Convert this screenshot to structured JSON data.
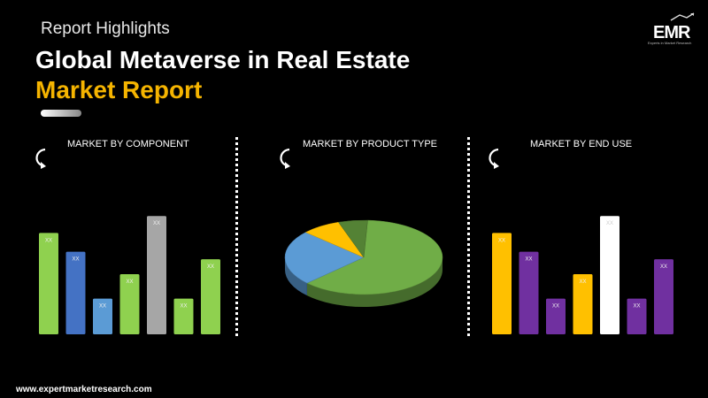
{
  "header": {
    "kicker": "Report Highlights",
    "title_line1": "Global Metaverse in Real Estate",
    "title_line2": "Market Report"
  },
  "logo": {
    "text": "EMR",
    "tagline": "Experts in Market Research"
  },
  "footer": {
    "url": "www.expertmarketresearch.com"
  },
  "chart_data": [
    {
      "type": "bar",
      "title": "MARKET BY COMPONENT",
      "categories": [
        "",
        "",
        "",
        "",
        "",
        "",
        ""
      ],
      "values": [
        108,
        88,
        38,
        64,
        126,
        38,
        80
      ],
      "data_labels": [
        "XX",
        "XX",
        "XX",
        "XX",
        "XX",
        "XX",
        "XX"
      ],
      "colors": [
        "#8fd14f",
        "#4472c4",
        "#5b9bd5",
        "#8fd14f",
        "#a6a6a6",
        "#8fd14f",
        "#8fd14f"
      ],
      "ylim": [
        0,
        130
      ],
      "grid": false
    },
    {
      "type": "pie",
      "title": "MARKET BY PRODUCT TYPE",
      "values": [
        62,
        24,
        8,
        6
      ],
      "colors": [
        "#70ad47",
        "#5b9bd5",
        "#ffc000",
        "#548235"
      ],
      "labels": [
        "",
        "",
        "",
        ""
      ]
    },
    {
      "type": "bar",
      "title": "MARKET BY END USE",
      "categories": [
        "",
        "",
        "",
        "",
        "",
        "",
        ""
      ],
      "values": [
        108,
        88,
        38,
        64,
        126,
        38,
        80
      ],
      "data_labels": [
        "XX",
        "XX",
        "XX",
        "XX",
        "XX",
        "XX",
        "XX"
      ],
      "colors": [
        "#ffc000",
        "#7030a0",
        "#7030a0",
        "#ffc000",
        "#ffffff",
        "#7030a0",
        "#7030a0"
      ],
      "ylim": [
        0,
        130
      ],
      "grid": false
    }
  ]
}
